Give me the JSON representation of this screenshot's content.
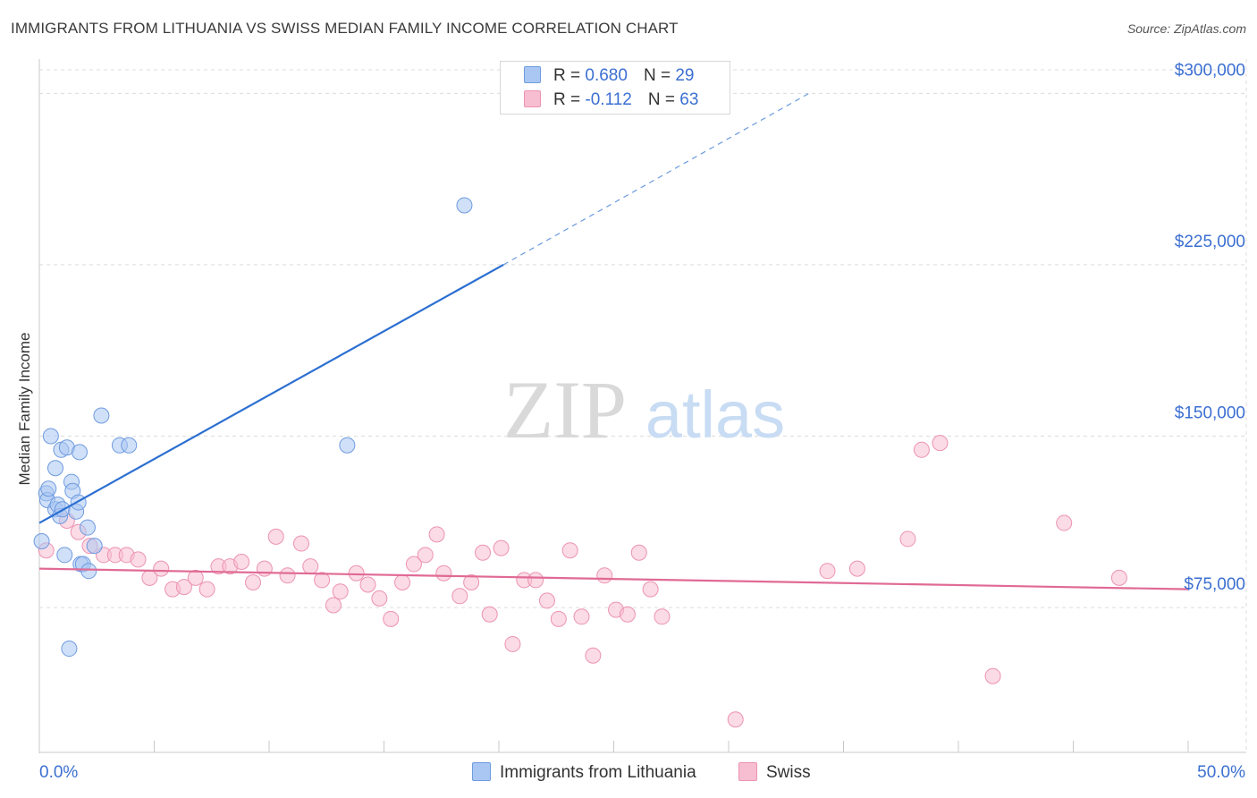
{
  "title": "IMMIGRANTS FROM LITHUANIA VS SWISS MEDIAN FAMILY INCOME CORRELATION CHART",
  "source": "Source: ZipAtlas.com",
  "watermark": {
    "zip": "ZIP",
    "atlas": "atlas"
  },
  "legend": {
    "r_label": "R =",
    "n_label": "N =",
    "series": [
      {
        "name": "Immigrants from Lithuania",
        "r": "0.680",
        "n": "29"
      },
      {
        "name": "Swiss",
        "r": "-0.112",
        "n": "63"
      }
    ]
  },
  "colors": {
    "blue_fill": "#a9c7f2",
    "blue_stroke": "#6f9be0",
    "blue_line": "#2c6fd1",
    "pink_fill": "#f7bdd0",
    "pink_stroke": "#ec93b2",
    "pink_line": "#e06a95",
    "axis_text": "#3b6fd1",
    "grid": "#dcdcdc"
  },
  "chart_data": {
    "type": "scatter",
    "title": "IMMIGRANTS FROM LITHUANIA VS SWISS MEDIAN FAMILY INCOME CORRELATION CHART",
    "xlabel": "",
    "ylabel": "Median Family Income",
    "xlim": [
      0,
      50
    ],
    "ylim": [
      12000,
      315000
    ],
    "x_tick_labels": [
      "0.0%",
      "50.0%"
    ],
    "y_ticks": [
      75000,
      150000,
      225000,
      300000
    ],
    "y_tick_labels": [
      "$75,000",
      "$150,000",
      "$225,000",
      "$300,000"
    ],
    "series": [
      {
        "name": "Immigrants from Lithuania",
        "color": "#a9c7f2",
        "points": [
          {
            "x": 0.1,
            "y": 104000
          },
          {
            "x": 0.3,
            "y": 125000
          },
          {
            "x": 0.35,
            "y": 122000
          },
          {
            "x": 0.4,
            "y": 127000
          },
          {
            "x": 0.5,
            "y": 150000
          },
          {
            "x": 0.7,
            "y": 118000
          },
          {
            "x": 0.7,
            "y": 136000
          },
          {
            "x": 0.8,
            "y": 120000
          },
          {
            "x": 0.9,
            "y": 115000
          },
          {
            "x": 0.95,
            "y": 144000
          },
          {
            "x": 1.0,
            "y": 118000
          },
          {
            "x": 1.1,
            "y": 98000
          },
          {
            "x": 1.2,
            "y": 145000
          },
          {
            "x": 1.3,
            "y": 57000
          },
          {
            "x": 1.4,
            "y": 130000
          },
          {
            "x": 1.45,
            "y": 126000
          },
          {
            "x": 1.6,
            "y": 117000
          },
          {
            "x": 1.7,
            "y": 121000
          },
          {
            "x": 1.75,
            "y": 143000
          },
          {
            "x": 1.8,
            "y": 94000
          },
          {
            "x": 1.9,
            "y": 94000
          },
          {
            "x": 2.1,
            "y": 110000
          },
          {
            "x": 2.15,
            "y": 91000
          },
          {
            "x": 2.4,
            "y": 102000
          },
          {
            "x": 2.7,
            "y": 159000
          },
          {
            "x": 3.5,
            "y": 146000
          },
          {
            "x": 3.9,
            "y": 146000
          },
          {
            "x": 13.4,
            "y": 146000
          },
          {
            "x": 18.5,
            "y": 251000
          }
        ],
        "trend": {
          "x_solid": [
            0,
            20.2
          ],
          "y_solid": [
            112000,
            225000
          ],
          "x_dashed": [
            20.2,
            33.5
          ],
          "y_dashed": [
            225000,
            300000
          ]
        }
      },
      {
        "name": "Swiss",
        "color": "#f7bdd0",
        "points": [
          {
            "x": 0.3,
            "y": 100000
          },
          {
            "x": 1.2,
            "y": 113000
          },
          {
            "x": 1.7,
            "y": 108000
          },
          {
            "x": 2.2,
            "y": 102000
          },
          {
            "x": 2.8,
            "y": 98000
          },
          {
            "x": 3.3,
            "y": 98000
          },
          {
            "x": 3.8,
            "y": 98000
          },
          {
            "x": 4.3,
            "y": 96000
          },
          {
            "x": 4.8,
            "y": 88000
          },
          {
            "x": 5.3,
            "y": 92000
          },
          {
            "x": 5.8,
            "y": 83000
          },
          {
            "x": 6.3,
            "y": 84000
          },
          {
            "x": 6.8,
            "y": 88000
          },
          {
            "x": 7.3,
            "y": 83000
          },
          {
            "x": 7.8,
            "y": 93000
          },
          {
            "x": 8.3,
            "y": 93000
          },
          {
            "x": 8.8,
            "y": 95000
          },
          {
            "x": 9.3,
            "y": 86000
          },
          {
            "x": 9.8,
            "y": 92000
          },
          {
            "x": 10.3,
            "y": 106000
          },
          {
            "x": 10.8,
            "y": 89000
          },
          {
            "x": 11.4,
            "y": 103000
          },
          {
            "x": 11.8,
            "y": 93000
          },
          {
            "x": 12.3,
            "y": 87000
          },
          {
            "x": 12.8,
            "y": 76000
          },
          {
            "x": 13.1,
            "y": 82000
          },
          {
            "x": 13.8,
            "y": 90000
          },
          {
            "x": 14.3,
            "y": 85000
          },
          {
            "x": 14.8,
            "y": 79000
          },
          {
            "x": 15.3,
            "y": 70000
          },
          {
            "x": 15.8,
            "y": 86000
          },
          {
            "x": 16.3,
            "y": 94000
          },
          {
            "x": 16.8,
            "y": 98000
          },
          {
            "x": 17.3,
            "y": 107000
          },
          {
            "x": 17.6,
            "y": 90000
          },
          {
            "x": 18.3,
            "y": 80000
          },
          {
            "x": 18.8,
            "y": 86000
          },
          {
            "x": 19.3,
            "y": 99000
          },
          {
            "x": 19.6,
            "y": 72000
          },
          {
            "x": 20.1,
            "y": 101000
          },
          {
            "x": 20.6,
            "y": 59000
          },
          {
            "x": 21.1,
            "y": 87000
          },
          {
            "x": 21.6,
            "y": 87000
          },
          {
            "x": 22.1,
            "y": 78000
          },
          {
            "x": 22.6,
            "y": 70000
          },
          {
            "x": 23.1,
            "y": 100000
          },
          {
            "x": 23.6,
            "y": 71000
          },
          {
            "x": 24.1,
            "y": 54000
          },
          {
            "x": 24.6,
            "y": 89000
          },
          {
            "x": 25.1,
            "y": 74000
          },
          {
            "x": 25.6,
            "y": 72000
          },
          {
            "x": 26.1,
            "y": 99000
          },
          {
            "x": 26.6,
            "y": 83000
          },
          {
            "x": 27.1,
            "y": 71000
          },
          {
            "x": 30.3,
            "y": 26000
          },
          {
            "x": 34.3,
            "y": 91000
          },
          {
            "x": 35.6,
            "y": 92000
          },
          {
            "x": 37.8,
            "y": 105000
          },
          {
            "x": 38.4,
            "y": 144000
          },
          {
            "x": 39.2,
            "y": 147000
          },
          {
            "x": 41.5,
            "y": 45000
          },
          {
            "x": 44.6,
            "y": 112000
          },
          {
            "x": 47.0,
            "y": 88000
          }
        ],
        "trend": {
          "x": [
            0,
            50
          ],
          "y": [
            92000,
            83000
          ]
        }
      }
    ]
  }
}
